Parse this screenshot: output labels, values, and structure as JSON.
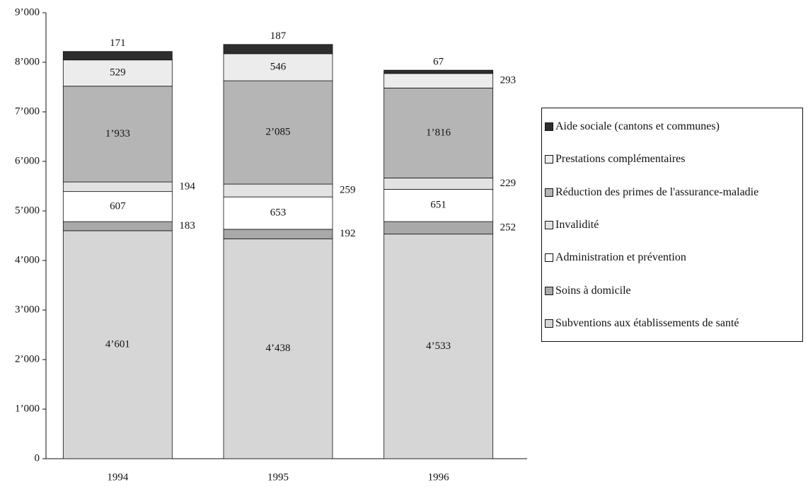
{
  "chart_data": {
    "type": "stacked-bar",
    "categories": [
      "1994",
      "1995",
      "1996"
    ],
    "series": [
      {
        "name": "Subventions aux établissements de santé",
        "color": "#d6d6d6",
        "values": [
          4601,
          4438,
          4533
        ],
        "value_labels": [
          "4’601",
          "4’438",
          "4’533"
        ]
      },
      {
        "name": "Soins à domicile",
        "color": "#a9a9a9",
        "values": [
          183,
          192,
          252
        ]
      },
      {
        "name": "Administration et prévention",
        "color": "#ffffff",
        "values": [
          607,
          653,
          651
        ]
      },
      {
        "name": "Invalidité",
        "color": "#e2e2e2",
        "values": [
          194,
          259,
          229
        ]
      },
      {
        "name": "Réduction des primes de l'assurance-maladie",
        "color": "#b5b5b5",
        "values": [
          1933,
          2085,
          1816
        ],
        "value_labels": [
          "1’933",
          "2’085",
          "1’816"
        ]
      },
      {
        "name": "Prestations complémentaires",
        "color": "#ececec",
        "values": [
          529,
          546,
          293
        ]
      },
      {
        "name": "Aide sociale (cantons et communes)",
        "color": "#2e2e2e",
        "values": [
          171,
          187,
          67
        ]
      }
    ],
    "ylim": [
      0,
      9000
    ],
    "yticks": [
      0,
      {
        "value": 1000,
        "label": "1’000"
      },
      {
        "value": 2000,
        "label": "2’000"
      },
      {
        "value": 3000,
        "label": "3’000"
      },
      {
        "value": 4000,
        "label": "4’000"
      },
      {
        "value": 5000,
        "label": "5’000"
      },
      {
        "value": 6000,
        "label": "6’000"
      },
      {
        "value": 7000,
        "label": "7’000"
      },
      {
        "value": 8000,
        "label": "8’000"
      },
      {
        "value": 9000,
        "label": "9’000"
      }
    ],
    "grid": false,
    "legend": "right"
  }
}
